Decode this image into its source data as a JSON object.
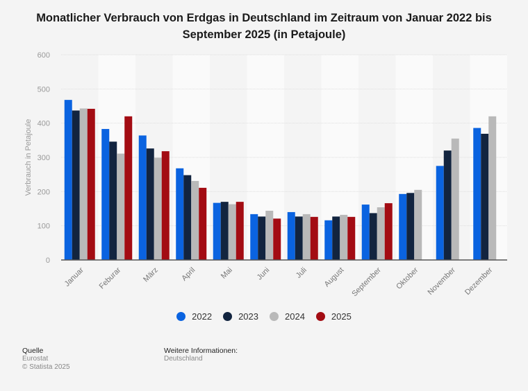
{
  "chart_data": {
    "type": "bar",
    "title": "Monatlicher Verbrauch von Erdgas in Deutschland im Zeitraum von Januar 2022 bis September 2025 (in Petajoule)",
    "title_lines": [
      "Monatlicher Verbrauch von Erdgas in Deutschland im Zeitraum von Januar 2022 bis",
      "September 2025 (in Petajoule)"
    ],
    "xlabel": "",
    "ylabel": "Verbrauch in Petajoule",
    "ylim": [
      0,
      600
    ],
    "yticks": [
      0,
      100,
      200,
      300,
      400,
      500,
      600
    ],
    "grid": true,
    "legend_position": "bottom",
    "categories": [
      "Januar",
      "Feburar",
      "März",
      "April",
      "Mai",
      "Juni",
      "Juli",
      "August",
      "September",
      "Oktober",
      "November",
      "Dezember"
    ],
    "series": [
      {
        "name": "2022",
        "color": "#0a63e0",
        "values": [
          468,
          383,
          364,
          268,
          167,
          134,
          140,
          116,
          162,
          193,
          275,
          386
        ]
      },
      {
        "name": "2023",
        "color": "#12243f",
        "values": [
          437,
          346,
          326,
          248,
          170,
          127,
          127,
          127,
          137,
          196,
          320,
          369
        ]
      },
      {
        "name": "2024",
        "color": "#b9b9b9",
        "values": [
          443,
          311,
          299,
          231,
          163,
          144,
          134,
          132,
          154,
          205,
          355,
          420
        ]
      },
      {
        "name": "2025",
        "color": "#a30c13",
        "values": [
          442,
          420,
          318,
          211,
          170,
          121,
          126,
          126,
          166,
          null,
          null,
          null
        ]
      }
    ]
  },
  "footer": {
    "source_heading": "Quelle",
    "source": "Eurostat",
    "copyright": "© Statista 2025",
    "info_heading": "Weitere Informationen:",
    "info": "Deutschland"
  }
}
